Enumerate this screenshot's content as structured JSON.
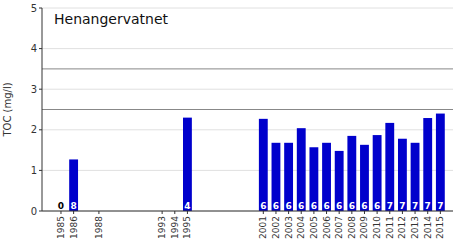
{
  "chart_data": {
    "type": "bar",
    "title": "Henangervatnet",
    "y_label": "TOC (mg/l)",
    "x": [
      1985,
      1986,
      1988,
      1993,
      1994,
      1995,
      2001,
      2002,
      2003,
      2004,
      2005,
      2006,
      2007,
      2008,
      2009,
      2010,
      2011,
      2012,
      2013,
      2014,
      2015
    ],
    "values": [
      0,
      1.27,
      0,
      0,
      0,
      2.3,
      2.27,
      1.68,
      1.68,
      2.04,
      1.57,
      1.68,
      1.48,
      1.85,
      1.63,
      1.87,
      2.17,
      1.78,
      1.68,
      2.29,
      2.4
    ],
    "counts": [
      0,
      8,
      null,
      null,
      null,
      4,
      6,
      6,
      6,
      6,
      6,
      6,
      6,
      6,
      6,
      6,
      7,
      7,
      7,
      7,
      7
    ],
    "reference_lines": [
      2.5,
      3.5
    ],
    "color": "#0000cc",
    "xlim": [
      1983.5,
      2016
    ],
    "xticks": [
      1985,
      1986,
      1988,
      1993,
      1994,
      1995,
      2001,
      2002,
      2003,
      2004,
      2005,
      2006,
      2007,
      2008,
      2009,
      2010,
      2011,
      2012,
      2013,
      2014,
      2015
    ],
    "ylim": [
      0,
      5
    ],
    "yticks": [
      0,
      1,
      2,
      3,
      4,
      5
    ],
    "grid": true
  }
}
